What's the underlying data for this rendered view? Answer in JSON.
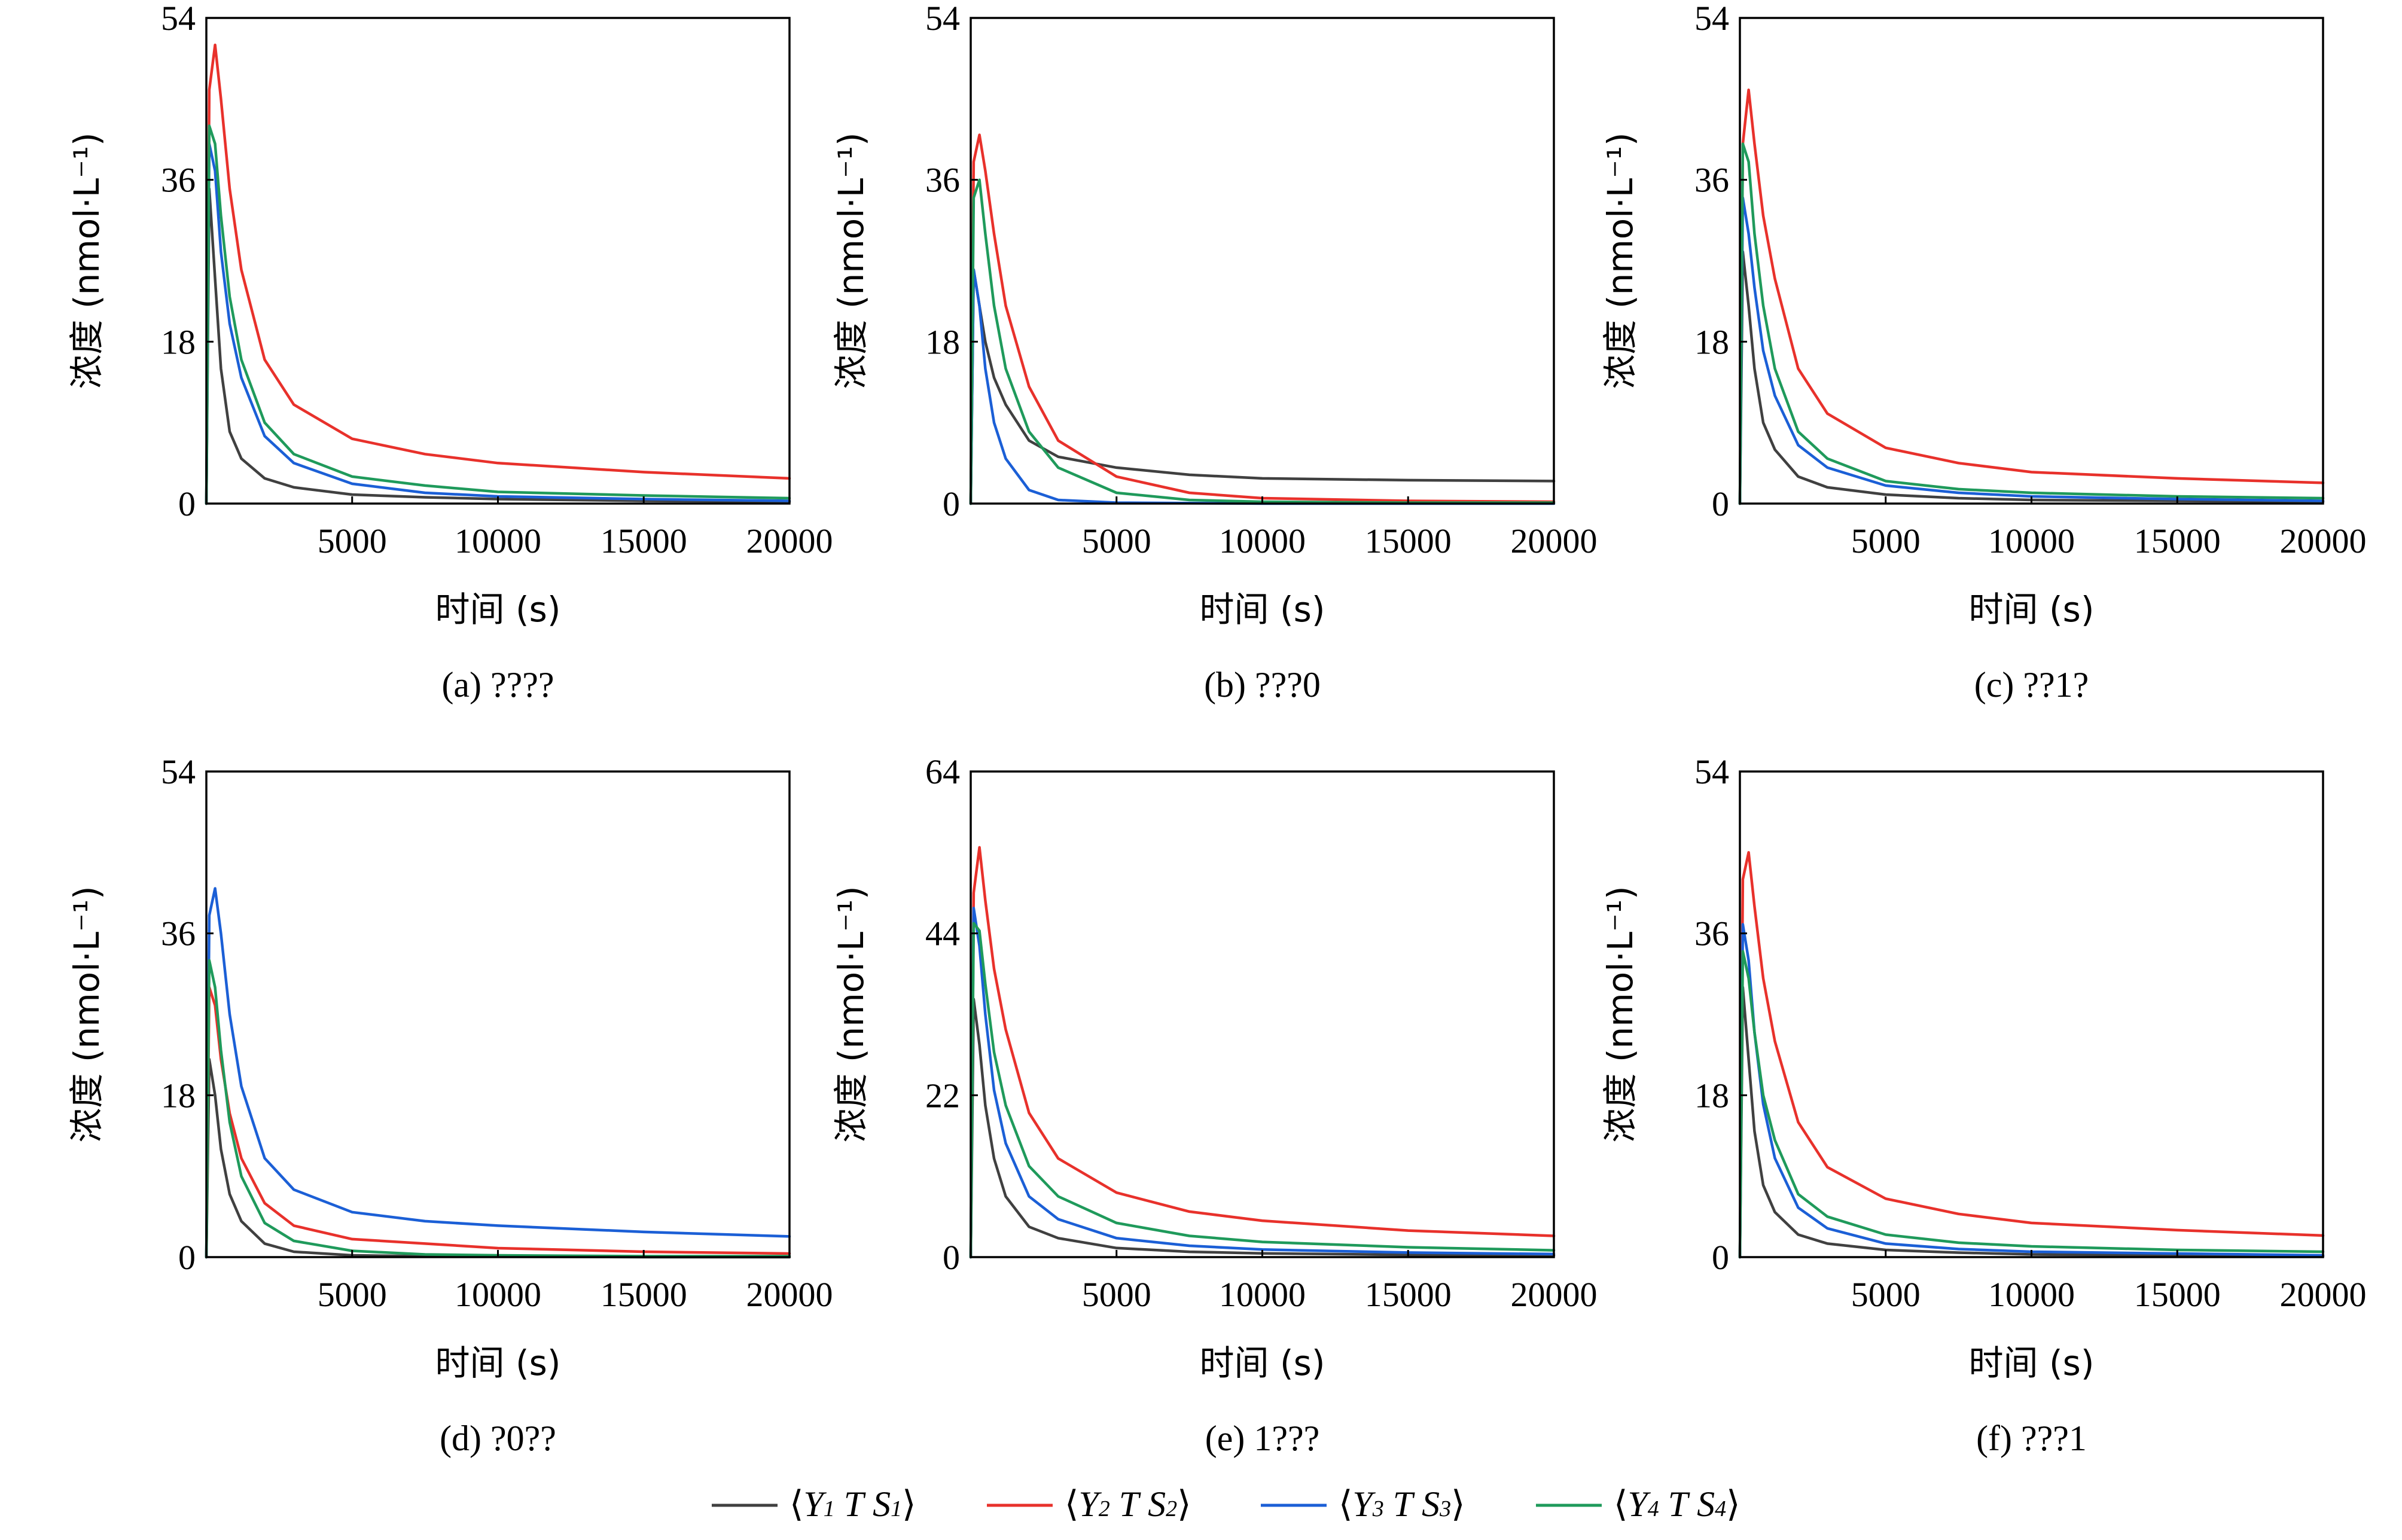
{
  "legend": [
    {
      "series": "Y1",
      "text": "⟨Y1  T S1⟩",
      "parts": [
        "Y",
        "1",
        "T",
        "S",
        "1"
      ],
      "color": "#404040"
    },
    {
      "series": "Y2",
      "text": "⟨Y2  T S2⟩",
      "parts": [
        "Y",
        "2",
        "T",
        "S",
        "2"
      ],
      "color": "#e8312b"
    },
    {
      "series": "Y3",
      "text": "⟨Y3  T S3⟩",
      "parts": [
        "Y",
        "3",
        "T",
        "S",
        "3"
      ],
      "color": "#1b5fd6"
    },
    {
      "series": "Y4",
      "text": "⟨Y4  T S4⟩",
      "parts": [
        "Y",
        "4",
        "T",
        "S",
        "4"
      ],
      "color": "#1f9a5b"
    }
  ],
  "chart_data": [
    {
      "type": "line",
      "caption": "(a) ????",
      "xlabel": "时间 (s)",
      "ylabel": "浓度 (nmol·L⁻¹)",
      "xlim": [
        0,
        20000
      ],
      "ylim": [
        0,
        54
      ],
      "xticks": [
        "5000",
        "10000",
        "15000",
        "20000"
      ],
      "yticks": [
        "0",
        "18",
        "36",
        "54"
      ],
      "grid": false,
      "x": [
        0,
        100,
        300,
        500,
        800,
        1200,
        2000,
        3000,
        5000,
        7500,
        10000,
        15000,
        20000
      ],
      "series": [
        {
          "name": "Y1",
          "values": [
            0,
            35,
            25,
            15,
            8,
            5,
            2.8,
            1.8,
            1.0,
            0.7,
            0.5,
            0.3,
            0.2
          ]
        },
        {
          "name": "Y2",
          "values": [
            0,
            46,
            51,
            45,
            35,
            26,
            16,
            11,
            7.2,
            5.5,
            4.5,
            3.5,
            2.8
          ]
        },
        {
          "name": "Y3",
          "values": [
            0,
            40,
            37,
            28,
            20,
            14,
            7.5,
            4.5,
            2.2,
            1.2,
            0.8,
            0.5,
            0.3
          ]
        },
        {
          "name": "Y4",
          "values": [
            0,
            42,
            40,
            32,
            23,
            16,
            9,
            5.5,
            3.0,
            2.0,
            1.3,
            0.9,
            0.6
          ]
        }
      ]
    },
    {
      "type": "line",
      "caption": "(b) ???0",
      "xlabel": "时间 (s)",
      "ylabel": "浓度 (nmol·L⁻¹)",
      "xlim": [
        0,
        20000
      ],
      "ylim": [
        0,
        54
      ],
      "xticks": [
        "5000",
        "10000",
        "15000",
        "20000"
      ],
      "yticks": [
        "0",
        "18",
        "36",
        "54"
      ],
      "grid": false,
      "x": [
        0,
        100,
        300,
        500,
        800,
        1200,
        2000,
        3000,
        5000,
        7500,
        10000,
        15000,
        20000
      ],
      "series": [
        {
          "name": "Y1",
          "values": [
            0,
            26,
            22,
            18,
            14,
            11,
            7,
            5.2,
            4.0,
            3.2,
            2.8,
            2.6,
            2.5
          ]
        },
        {
          "name": "Y2",
          "values": [
            0,
            38,
            41,
            37,
            30,
            22,
            13,
            7,
            3.0,
            1.2,
            0.6,
            0.3,
            0.2
          ]
        },
        {
          "name": "Y3",
          "values": [
            0,
            26,
            22,
            15,
            9,
            5,
            1.5,
            0.4,
            0.1,
            0.05,
            0,
            0,
            0
          ]
        },
        {
          "name": "Y4",
          "values": [
            0,
            34,
            36,
            30,
            22,
            15,
            8,
            4,
            1.2,
            0.4,
            0.2,
            0.1,
            0.1
          ]
        }
      ]
    },
    {
      "type": "line",
      "caption": "(c) ??1?",
      "xlabel": "时间 (s)",
      "ylabel": "浓度 (nmol·L⁻¹)",
      "xlim": [
        0,
        20000
      ],
      "ylim": [
        0,
        54
      ],
      "xticks": [
        "5000",
        "10000",
        "15000",
        "20000"
      ],
      "yticks": [
        "0",
        "18",
        "36",
        "54"
      ],
      "grid": false,
      "x": [
        0,
        100,
        300,
        500,
        800,
        1200,
        2000,
        3000,
        5000,
        7500,
        10000,
        15000,
        20000
      ],
      "series": [
        {
          "name": "Y1",
          "values": [
            0,
            28,
            22,
            15,
            9,
            6,
            3,
            1.8,
            1.0,
            0.6,
            0.4,
            0.3,
            0.2
          ]
        },
        {
          "name": "Y2",
          "values": [
            0,
            40,
            46,
            40,
            32,
            25,
            15,
            10,
            6.2,
            4.5,
            3.5,
            2.8,
            2.3
          ]
        },
        {
          "name": "Y3",
          "values": [
            0,
            34,
            30,
            24,
            17,
            12,
            6.5,
            4,
            2.0,
            1.2,
            0.8,
            0.5,
            0.3
          ]
        },
        {
          "name": "Y4",
          "values": [
            0,
            40,
            38,
            30,
            22,
            15,
            8,
            5,
            2.5,
            1.6,
            1.2,
            0.8,
            0.6
          ]
        }
      ]
    },
    {
      "type": "line",
      "caption": "(d) ?0??",
      "xlabel": "时间 (s)",
      "ylabel": "浓度 (nmol·L⁻¹)",
      "xlim": [
        0,
        20000
      ],
      "ylim": [
        0,
        54
      ],
      "xticks": [
        "5000",
        "10000",
        "15000",
        "20000"
      ],
      "yticks": [
        "0",
        "18",
        "36",
        "54"
      ],
      "grid": false,
      "x": [
        0,
        100,
        300,
        500,
        800,
        1200,
        2000,
        3000,
        5000,
        7500,
        10000,
        15000,
        20000
      ],
      "series": [
        {
          "name": "Y1",
          "values": [
            0,
            22,
            18,
            12,
            7,
            4,
            1.5,
            0.6,
            0.2,
            0.1,
            0.05,
            0,
            0
          ]
        },
        {
          "name": "Y2",
          "values": [
            0,
            30,
            28,
            22,
            16,
            11,
            6,
            3.5,
            2.0,
            1.5,
            1.0,
            0.6,
            0.4
          ]
        },
        {
          "name": "Y3",
          "values": [
            0,
            38,
            41,
            36,
            27,
            19,
            11,
            7.5,
            5.0,
            4.0,
            3.5,
            2.8,
            2.3
          ]
        },
        {
          "name": "Y4",
          "values": [
            0,
            33,
            30,
            23,
            15,
            9,
            3.8,
            1.8,
            0.7,
            0.3,
            0.2,
            0.1,
            0.1
          ]
        }
      ]
    },
    {
      "type": "line",
      "caption": "(e) 1???",
      "xlabel": "时间 (s)",
      "ylabel": "浓度 (nmol·L⁻¹)",
      "xlim": [
        0,
        20000
      ],
      "ylim": [
        0,
        64
      ],
      "xticks": [
        "5000",
        "10000",
        "15000",
        "20000"
      ],
      "yticks": [
        "0",
        "22",
        "44",
        "64"
      ],
      "grid": false,
      "x": [
        0,
        100,
        300,
        500,
        800,
        1200,
        2000,
        3000,
        5000,
        7500,
        10000,
        15000,
        20000
      ],
      "series": [
        {
          "name": "Y1",
          "values": [
            0,
            34,
            28,
            20,
            13,
            8,
            4,
            2.5,
            1.2,
            0.7,
            0.5,
            0.3,
            0.2
          ]
        },
        {
          "name": "Y2",
          "values": [
            0,
            48,
            54,
            47,
            38,
            30,
            19,
            13,
            8.5,
            6.0,
            4.8,
            3.5,
            2.8
          ]
        },
        {
          "name": "Y3",
          "values": [
            0,
            46,
            41,
            32,
            22,
            15,
            8,
            5,
            2.5,
            1.5,
            1.0,
            0.6,
            0.4
          ]
        },
        {
          "name": "Y4",
          "values": [
            0,
            44,
            43,
            36,
            27,
            20,
            12,
            8,
            4.5,
            2.8,
            2.0,
            1.3,
            0.9
          ]
        }
      ]
    },
    {
      "type": "line",
      "caption": "(f) ???1",
      "xlabel": "时间 (s)",
      "ylabel": "浓度 (nmol·L⁻¹)",
      "xlim": [
        0,
        20000
      ],
      "ylim": [
        0,
        54
      ],
      "xticks": [
        "5000",
        "10000",
        "15000",
        "20000"
      ],
      "yticks": [
        "0",
        "18",
        "36",
        "54"
      ],
      "grid": false,
      "x": [
        0,
        100,
        300,
        500,
        800,
        1200,
        2000,
        3000,
        5000,
        7500,
        10000,
        15000,
        20000
      ],
      "series": [
        {
          "name": "Y1",
          "values": [
            0,
            30,
            22,
            14,
            8,
            5,
            2.5,
            1.5,
            0.8,
            0.5,
            0.3,
            0.2,
            0.1
          ]
        },
        {
          "name": "Y2",
          "values": [
            0,
            42,
            45,
            39,
            31,
            24,
            15,
            10,
            6.5,
            4.8,
            3.8,
            3.0,
            2.4
          ]
        },
        {
          "name": "Y3",
          "values": [
            0,
            37,
            33,
            25,
            17,
            11,
            5.5,
            3.2,
            1.5,
            0.9,
            0.6,
            0.4,
            0.2
          ]
        },
        {
          "name": "Y4",
          "values": [
            0,
            34,
            31,
            25,
            18,
            13,
            7,
            4.5,
            2.5,
            1.6,
            1.2,
            0.8,
            0.6
          ]
        }
      ]
    }
  ]
}
